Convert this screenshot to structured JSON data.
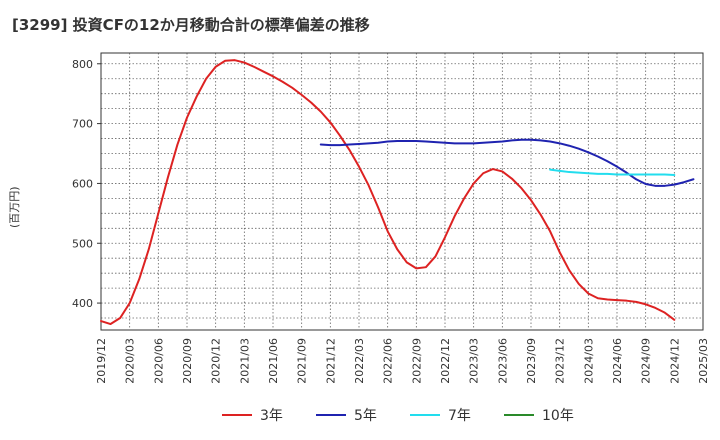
{
  "chart_data": {
    "type": "line",
    "title": "[3299]  投資CFの12か月移動合計の標準偏差の推移",
    "ylabel": "(百万円)",
    "xlabel": "",
    "ylim": [
      355,
      818
    ],
    "yticks": [
      400,
      500,
      600,
      700,
      800
    ],
    "xtick_labels": [
      "2019/12",
      "2020/03",
      "2020/06",
      "2020/09",
      "2020/12",
      "2021/03",
      "2021/06",
      "2021/09",
      "2021/12",
      "2022/03",
      "2022/06",
      "2022/09",
      "2022/12",
      "2023/03",
      "2023/06",
      "2023/09",
      "2023/12",
      "2024/03",
      "2024/06",
      "2024/09",
      "2024/12",
      "2025/03"
    ],
    "grid": true,
    "legend_position": "bottom",
    "series": [
      {
        "name": "3年",
        "color": "#dd2222",
        "start": "2019/12",
        "values": [
          370,
          365,
          375,
          400,
          440,
          490,
          550,
          610,
          665,
          710,
          745,
          775,
          795,
          805,
          806,
          802,
          795,
          787,
          779,
          770,
          760,
          748,
          735,
          720,
          702,
          680,
          656,
          628,
          597,
          560,
          520,
          490,
          468,
          458,
          460,
          478,
          510,
          545,
          575,
          600,
          617,
          624,
          620,
          608,
          592,
          572,
          548,
          520,
          485,
          455,
          432,
          416,
          408,
          406,
          405,
          404,
          402,
          398,
          392,
          384,
          372
        ]
      },
      {
        "name": "5年",
        "color": "#1f23b0",
        "start": "2021/11",
        "values": [
          665,
          664,
          664,
          665,
          666,
          667,
          668,
          670,
          671,
          671,
          671,
          670,
          669,
          668,
          667,
          667,
          667,
          668,
          669,
          670,
          672,
          673,
          673,
          672,
          670,
          667,
          663,
          658,
          652,
          645,
          637,
          628,
          618,
          607,
          599,
          596,
          596,
          598,
          602,
          607
        ]
      },
      {
        "name": "7年",
        "color": "#22ddee",
        "start": "2023/11",
        "values": [
          623,
          621,
          619,
          618,
          617,
          616,
          616,
          615,
          615,
          615,
          615,
          615,
          615,
          614
        ]
      },
      {
        "name": "10年",
        "color": "#2a8a2a",
        "start": "2024/01",
        "values": []
      }
    ]
  }
}
